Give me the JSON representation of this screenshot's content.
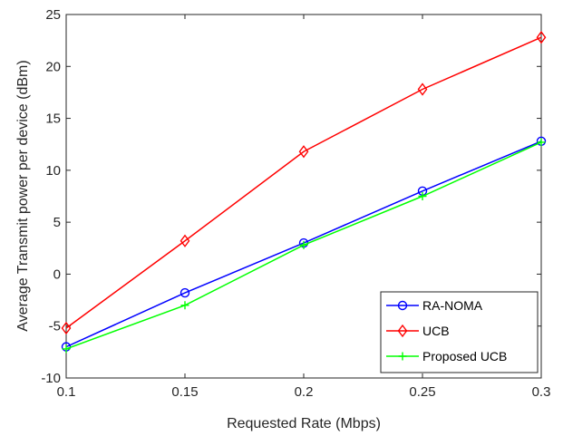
{
  "chart_data": {
    "type": "line",
    "title": "",
    "xlabel": "Requested Rate (Mbps)",
    "ylabel": "Average Transmit power per device (dBm)",
    "x": [
      0.1,
      0.15,
      0.2,
      0.25,
      0.3
    ],
    "xlim": [
      0.1,
      0.3
    ],
    "ylim": [
      -10,
      25
    ],
    "xticks": [
      "0.1",
      "0.15",
      "0.2",
      "0.25",
      "0.3"
    ],
    "yticks": [
      "-10",
      "-5",
      "0",
      "5",
      "10",
      "15",
      "20",
      "25"
    ],
    "grid": false,
    "legend_position": "bottom-right",
    "series": [
      {
        "name": "RA-NOMA",
        "color": "#0000ff",
        "marker": "circle",
        "values": [
          -7.0,
          -1.8,
          3.0,
          8.0,
          12.8
        ]
      },
      {
        "name": "UCB",
        "color": "#ff0000",
        "marker": "diamond",
        "values": [
          -5.2,
          3.2,
          11.8,
          17.8,
          22.8
        ]
      },
      {
        "name": "Proposed UCB",
        "color": "#00ff00",
        "marker": "plus",
        "values": [
          -7.2,
          -3.0,
          2.8,
          7.5,
          12.7
        ]
      }
    ]
  }
}
